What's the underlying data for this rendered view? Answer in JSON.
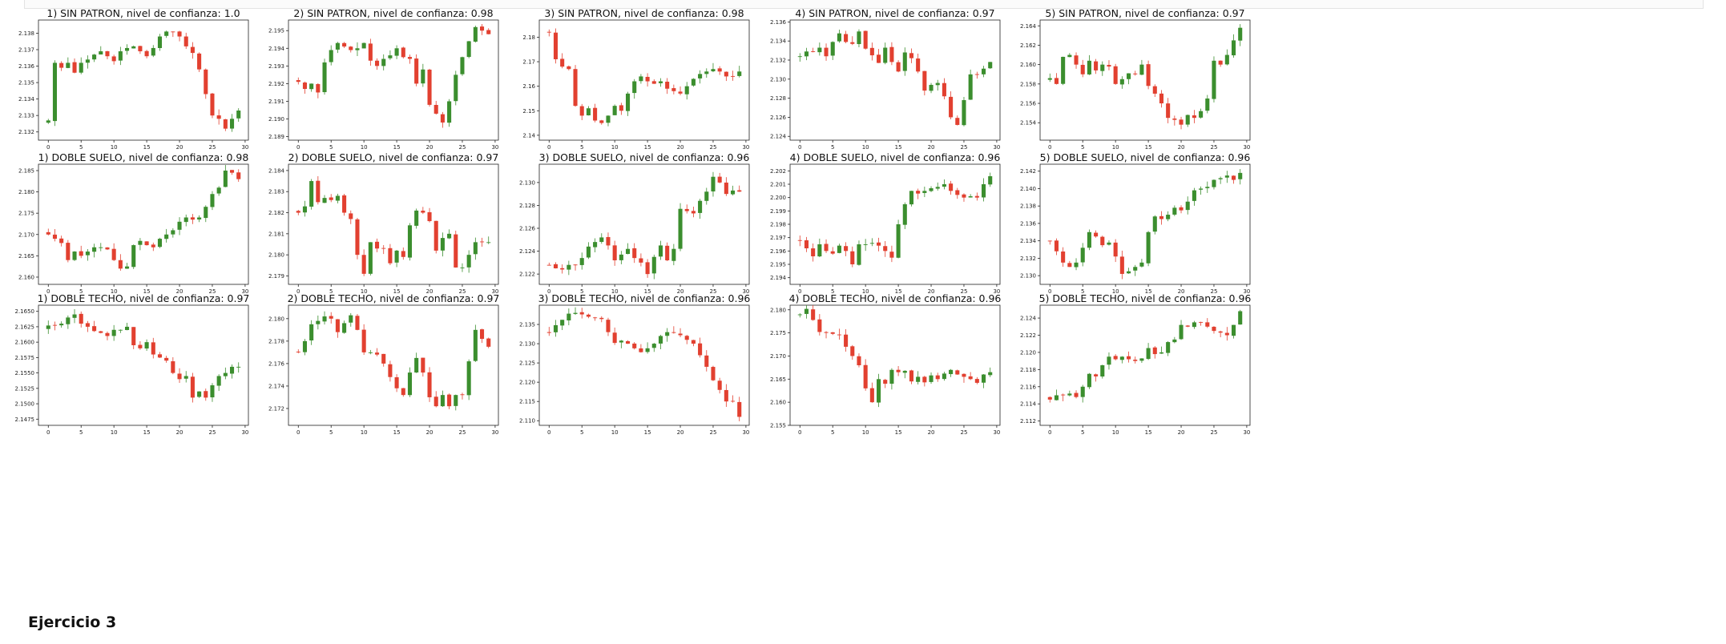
{
  "colors": {
    "up": "#3b8e2e",
    "down": "#e24030"
  },
  "section_title": "Ejercicio 3",
  "chart_data": [
    {
      "type": "candlestick",
      "title": "1) SIN PATRON, nivel de confianza: 1.0",
      "x_ticks": [
        0,
        5,
        10,
        15,
        20,
        25,
        30
      ],
      "xlim": [
        -1.5,
        30.5
      ],
      "ylim": [
        2.1315,
        2.1388
      ],
      "y_ticks": [
        2.132,
        2.133,
        2.134,
        2.135,
        2.136,
        2.137,
        2.138
      ],
      "y_decimals": 3,
      "close": [
        2.1327,
        2.1362,
        2.1359,
        2.1362,
        2.1356,
        2.1362,
        2.1364,
        2.1367,
        2.1369,
        2.1366,
        2.1363,
        2.1369,
        2.1371,
        2.1372,
        2.1369,
        2.1366,
        2.1371,
        2.1378,
        2.1381,
        2.1381,
        2.1378,
        2.1372,
        2.1368,
        2.1358,
        2.1343,
        2.133,
        2.1328,
        2.1322,
        2.1328,
        2.1333
      ]
    },
    {
      "type": "candlestick",
      "title": "2) SIN PATRON, nivel de confianza: 0.98",
      "x_ticks": [
        0,
        5,
        10,
        15,
        20,
        25,
        30
      ],
      "xlim": [
        -1.5,
        30.5
      ],
      "ylim": [
        2.1888,
        2.1956
      ],
      "y_ticks": [
        2.189,
        2.19,
        2.191,
        2.192,
        2.193,
        2.194,
        2.195
      ],
      "y_decimals": 3,
      "close": [
        2.1921,
        2.1917,
        2.192,
        2.1915,
        2.1932,
        2.1939,
        2.1943,
        2.1941,
        2.1939,
        2.194,
        2.1943,
        2.1933,
        2.193,
        2.1934,
        2.1936,
        2.194,
        2.1935,
        2.1934,
        2.192,
        2.1928,
        2.1908,
        2.1903,
        2.1898,
        2.191,
        2.1925,
        2.1935,
        2.1944,
        2.1952,
        2.195,
        2.1948
      ]
    },
    {
      "type": "candlestick",
      "title": "3) SIN PATRON, nivel de confianza: 0.98",
      "x_ticks": [
        0,
        5,
        10,
        15,
        20,
        25,
        30
      ],
      "xlim": [
        -1.5,
        30.5
      ],
      "ylim": [
        2.138,
        2.187
      ],
      "y_ticks": [
        2.14,
        2.15,
        2.16,
        2.17,
        2.18
      ],
      "y_decimals": 2,
      "close": [
        2.182,
        2.171,
        2.168,
        2.167,
        2.152,
        2.148,
        2.151,
        2.146,
        2.145,
        2.148,
        2.152,
        2.15,
        2.157,
        2.162,
        2.164,
        2.162,
        2.161,
        2.162,
        2.159,
        2.158,
        2.157,
        2.16,
        2.163,
        2.165,
        2.166,
        2.167,
        2.166,
        2.164,
        2.164,
        2.166
      ]
    },
    {
      "type": "candlestick",
      "title": "4) SIN PATRON, nivel de confianza: 0.97",
      "x_ticks": [
        0,
        5,
        10,
        15,
        20,
        25,
        30
      ],
      "xlim": [
        -1.5,
        30.5
      ],
      "ylim": [
        2.1236,
        2.1362
      ],
      "y_ticks": [
        2.124,
        2.126,
        2.128,
        2.13,
        2.132,
        2.134,
        2.136
      ],
      "y_decimals": 3,
      "close": [
        2.1324,
        2.1329,
        2.1329,
        2.1333,
        2.1324,
        2.1339,
        2.1348,
        2.1339,
        2.1337,
        2.135,
        2.1332,
        2.1325,
        2.1317,
        2.1333,
        2.1318,
        2.1308,
        2.1328,
        2.1322,
        2.1308,
        2.1288,
        2.1294,
        2.1296,
        2.1282,
        2.126,
        2.1252,
        2.1278,
        2.1305,
        2.1305,
        2.1311,
        2.1318
      ]
    },
    {
      "type": "candlestick",
      "title": "5) SIN PATRON, nivel de confianza: 0.97",
      "x_ticks": [
        0,
        5,
        10,
        15,
        20,
        25,
        30
      ],
      "xlim": [
        -1.5,
        30.5
      ],
      "ylim": [
        2.1522,
        2.1646
      ],
      "y_ticks": [
        2.154,
        2.156,
        2.158,
        2.16,
        2.162,
        2.164
      ],
      "y_decimals": 3,
      "close": [
        2.1586,
        2.158,
        2.1608,
        2.161,
        2.16,
        2.159,
        2.1604,
        2.1594,
        2.16,
        2.1598,
        2.158,
        2.1585,
        2.1591,
        2.159,
        2.16,
        2.1578,
        2.157,
        2.156,
        2.1545,
        2.1543,
        2.1538,
        2.1548,
        2.1545,
        2.1552,
        2.1565,
        2.1604,
        2.16,
        2.161,
        2.1625,
        2.1638
      ]
    },
    {
      "type": "candlestick",
      "title": "1) DOBLE SUELO, nivel de confianza: 0.98",
      "x_ticks": [
        0,
        5,
        10,
        15,
        20,
        25,
        30
      ],
      "xlim": [
        -1.5,
        30.5
      ],
      "ylim": [
        2.1583,
        2.1865
      ],
      "y_ticks": [
        2.16,
        2.165,
        2.17,
        2.175,
        2.18,
        2.185
      ],
      "y_decimals": 3,
      "close": [
        2.17,
        2.169,
        2.168,
        2.164,
        2.166,
        2.165,
        2.166,
        2.167,
        2.167,
        2.1665,
        2.164,
        2.162,
        2.1625,
        2.1675,
        2.1685,
        2.1675,
        2.167,
        2.169,
        2.17,
        2.171,
        2.173,
        2.174,
        2.1735,
        2.174,
        2.1765,
        2.1795,
        2.181,
        2.185,
        2.1845,
        2.183
      ]
    },
    {
      "type": "candlestick",
      "title": "2) DOBLE SUELO, nivel de confianza: 0.97",
      "x_ticks": [
        0,
        5,
        10,
        15,
        20,
        25,
        30
      ],
      "xlim": [
        -1.5,
        30.5
      ],
      "ylim": [
        2.1786,
        2.1843
      ],
      "y_ticks": [
        2.179,
        2.18,
        2.181,
        2.182,
        2.183,
        2.184
      ],
      "y_decimals": 3,
      "close": [
        2.182,
        2.1823,
        2.1835,
        2.1825,
        2.1827,
        2.1826,
        2.1828,
        2.182,
        2.1817,
        2.18,
        2.1791,
        2.1806,
        2.1803,
        2.1803,
        2.1796,
        2.1802,
        2.1799,
        2.1814,
        2.1821,
        2.182,
        2.1816,
        2.1802,
        2.1808,
        2.181,
        2.1794,
        2.1794,
        2.18,
        2.1806,
        2.1806,
        2.1806
      ]
    },
    {
      "type": "candlestick",
      "title": "3) DOBLE SUELO, nivel de confianza: 0.96",
      "x_ticks": [
        0,
        5,
        10,
        15,
        20,
        25,
        30
      ],
      "xlim": [
        -1.5,
        30.5
      ],
      "ylim": [
        2.1211,
        2.1316
      ],
      "y_ticks": [
        2.122,
        2.124,
        2.126,
        2.128,
        2.13
      ],
      "y_decimals": 3,
      "close": [
        2.1228,
        2.1225,
        2.1224,
        2.1228,
        2.1228,
        2.1234,
        2.1244,
        2.1248,
        2.1252,
        2.1245,
        2.1232,
        2.1237,
        2.1242,
        2.1234,
        2.123,
        2.122,
        2.1235,
        2.1245,
        2.1232,
        2.1242,
        2.1277,
        2.1275,
        2.1273,
        2.1284,
        2.1292,
        2.1305,
        2.13,
        2.129,
        2.1293,
        2.1292
      ]
    },
    {
      "type": "candlestick",
      "title": "4) DOBLE SUELO, nivel de confianza: 0.96",
      "x_ticks": [
        0,
        5,
        10,
        15,
        20,
        25,
        30
      ],
      "xlim": [
        -1.5,
        30.5
      ],
      "ylim": [
        2.1935,
        2.2025
      ],
      "y_ticks": [
        2.194,
        2.195,
        2.196,
        2.197,
        2.198,
        2.199,
        2.2,
        2.201,
        2.202
      ],
      "y_decimals": 3,
      "close": [
        2.1968,
        2.1962,
        2.1956,
        2.1965,
        2.196,
        2.1958,
        2.1964,
        2.196,
        2.195,
        2.1965,
        2.1965,
        2.1966,
        2.1964,
        2.196,
        2.1955,
        2.198,
        2.1995,
        2.2005,
        2.2003,
        2.2005,
        2.2007,
        2.2008,
        2.201,
        2.2005,
        2.2002,
        2.2,
        2.2001,
        2.2,
        2.201,
        2.2016
      ]
    },
    {
      "type": "candlestick",
      "title": "5) DOBLE SUELO, nivel de confianza: 0.96",
      "x_ticks": [
        0,
        5,
        10,
        15,
        20,
        25,
        30
      ],
      "xlim": [
        -1.5,
        30.5
      ],
      "ylim": [
        2.129,
        2.1428
      ],
      "y_ticks": [
        2.13,
        2.132,
        2.134,
        2.136,
        2.138,
        2.14,
        2.142
      ],
      "y_decimals": 3,
      "close": [
        2.134,
        2.1328,
        2.1315,
        2.131,
        2.1315,
        2.1332,
        2.135,
        2.1345,
        2.1335,
        2.1338,
        2.1322,
        2.1302,
        2.1305,
        2.131,
        2.1315,
        2.135,
        2.1368,
        2.1365,
        2.137,
        2.1378,
        2.1375,
        2.1385,
        2.1398,
        2.14,
        2.1402,
        2.141,
        2.1412,
        2.1415,
        2.141,
        2.1418
      ]
    },
    {
      "type": "candlestick",
      "title": "1) DOBLE TECHO, nivel de confianza: 0.97",
      "x_ticks": [
        0,
        5,
        10,
        15,
        20,
        25,
        30
      ],
      "xlim": [
        -1.5,
        30.5
      ],
      "ylim": [
        2.1465,
        2.166
      ],
      "y_ticks": [
        2.1475,
        2.15,
        2.1525,
        2.155,
        2.1575,
        2.16,
        2.1625,
        2.165
      ],
      "y_decimals": 4,
      "close": [
        2.1627,
        2.1627,
        2.163,
        2.164,
        2.1645,
        2.163,
        2.1625,
        2.1618,
        2.1615,
        2.161,
        2.162,
        2.162,
        2.1625,
        2.1595,
        2.159,
        2.16,
        2.158,
        2.1575,
        2.157,
        2.155,
        2.154,
        2.1545,
        2.151,
        2.152,
        2.151,
        2.153,
        2.1545,
        2.155,
        2.156,
        2.156
      ]
    },
    {
      "type": "candlestick",
      "title": "2) DOBLE TECHO, nivel de confianza: 0.97",
      "x_ticks": [
        0,
        5,
        10,
        15,
        20,
        25,
        30
      ],
      "xlim": [
        -1.5,
        30.5
      ],
      "ylim": [
        2.1705,
        2.1812
      ],
      "y_ticks": [
        2.172,
        2.174,
        2.176,
        2.178,
        2.18
      ],
      "y_decimals": 3,
      "close": [
        2.177,
        2.178,
        2.1795,
        2.1798,
        2.1802,
        2.18,
        2.1788,
        2.1796,
        2.1803,
        2.179,
        2.177,
        2.177,
        2.1768,
        2.176,
        2.1748,
        2.1738,
        2.1732,
        2.1752,
        2.1765,
        2.1752,
        2.173,
        2.1722,
        2.1732,
        2.1722,
        2.1732,
        2.1732,
        2.1762,
        2.179,
        2.1782,
        2.1775
      ]
    },
    {
      "type": "candlestick",
      "title": "3) DOBLE TECHO, nivel de confianza: 0.96",
      "x_ticks": [
        0,
        5,
        10,
        15,
        20,
        25,
        30
      ],
      "xlim": [
        -1.5,
        30.5
      ],
      "ylim": [
        2.1088,
        2.14
      ],
      "y_ticks": [
        2.11,
        2.115,
        2.12,
        2.125,
        2.13,
        2.135
      ],
      "y_decimals": 3,
      "close": [
        2.1328,
        2.1348,
        2.1362,
        2.1378,
        2.138,
        2.1376,
        2.137,
        2.1368,
        2.1364,
        2.133,
        2.1302,
        2.1308,
        2.13,
        2.1288,
        2.1278,
        2.1288,
        2.13,
        2.132,
        2.133,
        2.1328,
        2.1322,
        2.131,
        2.13,
        2.127,
        2.124,
        2.1205,
        2.118,
        2.115,
        2.115,
        2.111
      ]
    },
    {
      "type": "candlestick",
      "title": "4) DOBLE TECHO, nivel de confianza: 0.96",
      "x_ticks": [
        0,
        5,
        10,
        15,
        20,
        25,
        30
      ],
      "xlim": [
        -1.5,
        30.5
      ],
      "ylim": [
        2.155,
        2.181
      ],
      "y_ticks": [
        2.155,
        2.16,
        2.165,
        2.17,
        2.175,
        2.18
      ],
      "y_decimals": 3,
      "close": [
        2.179,
        2.1802,
        2.1778,
        2.1752,
        2.175,
        2.1748,
        2.1745,
        2.172,
        2.17,
        2.168,
        2.163,
        2.16,
        2.165,
        2.164,
        2.167,
        2.1665,
        2.1668,
        2.1645,
        2.1655,
        2.1643,
        2.1658,
        2.165,
        2.1662,
        2.167,
        2.166,
        2.1655,
        2.165,
        2.1642,
        2.166,
        2.1665
      ]
    },
    {
      "type": "candlestick",
      "title": "5) DOBLE TECHO, nivel de confianza: 0.96",
      "x_ticks": [
        0,
        5,
        10,
        15,
        20,
        25,
        30
      ],
      "xlim": [
        -1.5,
        30.5
      ],
      "ylim": [
        2.1115,
        2.1255
      ],
      "y_ticks": [
        2.112,
        2.114,
        2.116,
        2.118,
        2.12,
        2.122,
        2.124
      ],
      "y_decimals": 3,
      "close": [
        2.1145,
        2.115,
        2.115,
        2.1152,
        2.1148,
        2.116,
        2.1175,
        2.1172,
        2.1185,
        2.1195,
        2.1192,
        2.1195,
        2.1192,
        2.119,
        2.1193,
        2.1205,
        2.1198,
        2.12,
        2.1212,
        2.1215,
        2.1232,
        2.123,
        2.1235,
        2.1235,
        2.123,
        2.1225,
        2.1223,
        2.122,
        2.1232,
        2.1248
      ]
    }
  ]
}
